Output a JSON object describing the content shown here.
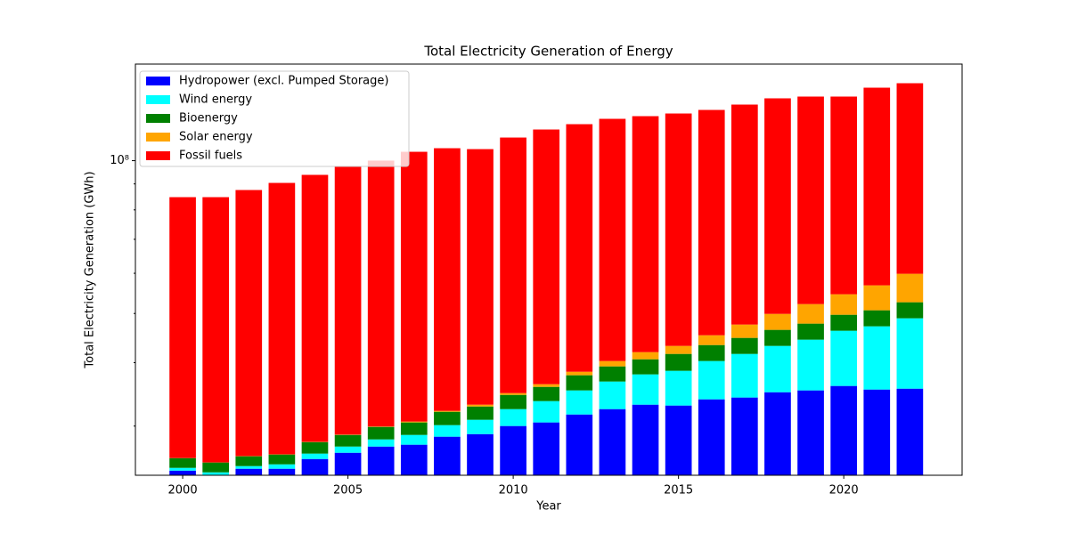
{
  "chart_data": {
    "type": "stacked_bar",
    "title": "Total Electricity Generation of Energy",
    "x_label": "Year",
    "y_label": "Total Electricity Generation (GWh)",
    "x": [
      2000,
      2001,
      2002,
      2003,
      2004,
      2005,
      2006,
      2007,
      2008,
      2009,
      2010,
      2011,
      2012,
      2013,
      2014,
      2015,
      2016,
      2017,
      2018,
      2019,
      2020,
      2021,
      2022
    ],
    "series": [
      {
        "name": "Hydropower (excl. Pumped Storage)",
        "color": "#0000ff",
        "values": [
          24510000,
          23900000,
          24720000,
          24720000,
          25840000,
          26580000,
          27340000,
          27570000,
          28590000,
          28930000,
          30010000,
          30500000,
          31620000,
          32400000,
          33060000,
          32930000,
          33870000,
          34150000,
          34980000,
          35270000,
          35990000,
          35410000,
          35550000
        ]
      },
      {
        "name": "Wind energy",
        "color": "#00ffff",
        "values": [
          310000,
          420000,
          300000,
          500000,
          640000,
          760000,
          900000,
          1250000,
          1540000,
          1940000,
          2390000,
          3100000,
          3650000,
          4320000,
          4870000,
          5620000,
          6430000,
          7470000,
          8180000,
          9130000,
          10240000,
          11760000,
          13370000
        ]
      },
      {
        "name": "Bioenergy",
        "color": "#008000",
        "values": [
          1120000,
          1110000,
          1140000,
          1150000,
          1420000,
          1480000,
          1650000,
          1680000,
          1880000,
          1920000,
          2160000,
          2240000,
          2510000,
          2610000,
          2690000,
          3070000,
          3030000,
          3140000,
          3260000,
          3350000,
          3480000,
          3560000,
          3690000
        ]
      },
      {
        "name": "Solar energy",
        "color": "#ffa500",
        "values": [
          10000,
          10000,
          20000,
          20000,
          30000,
          40000,
          50000,
          120000,
          130000,
          270000,
          280000,
          440000,
          610000,
          970000,
          1340000,
          1540000,
          1970000,
          2790000,
          3490000,
          4430000,
          4850000,
          6080000,
          7260000
        ]
      },
      {
        "name": "Fossil fuels",
        "color": "#ff0000",
        "values": [
          58800000,
          59310000,
          61360000,
          64020000,
          65840000,
          68390000,
          70110000,
          73500000,
          73680000,
          72330000,
          76230000,
          78910000,
          79620000,
          80610000,
          80420000,
          80710000,
          80590000,
          81430000,
          82780000,
          81580000,
          79200000,
          82450000,
          82240000
        ]
      }
    ],
    "xlim": [
      1998.57,
      2023.58
    ],
    "xticks": [
      2000,
      2005,
      2010,
      2015,
      2020
    ],
    "ylim": [
      24000000,
      155000000
    ],
    "yticks": [
      {
        "value": 100000000,
        "label": "10⁸"
      }
    ],
    "minor_yticks": [
      30000000,
      40000000,
      50000000,
      60000000,
      70000000,
      80000000,
      90000000
    ],
    "y_scale": "log",
    "legend": "upper left"
  }
}
